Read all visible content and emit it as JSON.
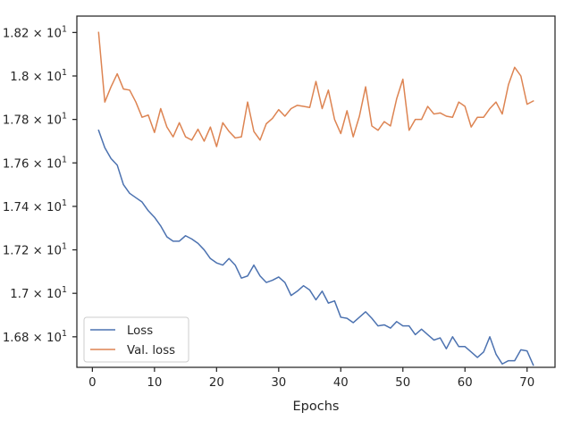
{
  "chart_data": {
    "type": "line",
    "xlabel": "Epochs",
    "ylabel": "",
    "xlim": [
      -2.5,
      74.5
    ],
    "ylim": [
      16.6595,
      18.2755
    ],
    "x_ticks": [
      0,
      10,
      20,
      30,
      40,
      50,
      60,
      70
    ],
    "y_ticks": [
      {
        "value": 16.8,
        "mantissa": "1.68"
      },
      {
        "value": 17.0,
        "mantissa": "1.7"
      },
      {
        "value": 17.2,
        "mantissa": "1.72"
      },
      {
        "value": 17.4,
        "mantissa": "1.74"
      },
      {
        "value": 17.6,
        "mantissa": "1.76"
      },
      {
        "value": 17.8,
        "mantissa": "1.78"
      },
      {
        "value": 18.0,
        "mantissa": "1.8"
      },
      {
        "value": 18.2,
        "mantissa": "1.82"
      }
    ],
    "y_tick_suffix": "× 10",
    "y_tick_exponent": "1",
    "grid": false,
    "legend_position": "lower-left",
    "x": [
      1,
      2,
      3,
      4,
      5,
      6,
      7,
      8,
      9,
      10,
      11,
      12,
      13,
      14,
      15,
      16,
      17,
      18,
      19,
      20,
      21,
      22,
      23,
      24,
      25,
      26,
      27,
      28,
      29,
      30,
      31,
      32,
      33,
      34,
      35,
      36,
      37,
      38,
      39,
      40,
      41,
      42,
      43,
      44,
      45,
      46,
      47,
      48,
      49,
      50,
      51,
      52,
      53,
      54,
      55,
      56,
      57,
      58,
      59,
      60,
      61,
      62,
      63,
      64,
      65,
      66,
      67,
      68,
      69,
      70,
      71
    ],
    "series": [
      {
        "name": "Loss",
        "color": "#4c72b0",
        "values": [
          17.75,
          17.67,
          17.62,
          17.59,
          17.5,
          17.46,
          17.44,
          17.42,
          17.38,
          17.35,
          17.31,
          17.26,
          17.24,
          17.24,
          17.265,
          17.25,
          17.23,
          17.2,
          17.16,
          17.14,
          17.13,
          17.16,
          17.13,
          17.07,
          17.08,
          17.13,
          17.08,
          17.05,
          17.06,
          17.075,
          17.05,
          16.99,
          17.01,
          17.035,
          17.015,
          16.97,
          17.01,
          16.955,
          16.965,
          16.89,
          16.885,
          16.865,
          16.89,
          16.915,
          16.885,
          16.85,
          16.855,
          16.84,
          16.87,
          16.85,
          16.85,
          16.81,
          16.835,
          16.81,
          16.785,
          16.795,
          16.745,
          16.8,
          16.755,
          16.755,
          16.73,
          16.705,
          16.73,
          16.8,
          16.72,
          16.675,
          16.69,
          16.69,
          16.74,
          16.735,
          16.67
        ]
      },
      {
        "name": "Val. loss",
        "color": "#dd8452",
        "values": [
          18.2,
          17.88,
          17.95,
          18.01,
          17.94,
          17.935,
          17.88,
          17.81,
          17.82,
          17.74,
          17.85,
          17.765,
          17.72,
          17.785,
          17.72,
          17.705,
          17.755,
          17.7,
          17.765,
          17.675,
          17.785,
          17.745,
          17.715,
          17.72,
          17.88,
          17.745,
          17.705,
          17.78,
          17.805,
          17.845,
          17.815,
          17.85,
          17.865,
          17.86,
          17.855,
          17.975,
          17.85,
          17.935,
          17.8,
          17.735,
          17.84,
          17.72,
          17.815,
          17.95,
          17.77,
          17.75,
          17.79,
          17.77,
          17.895,
          17.985,
          17.75,
          17.8,
          17.8,
          17.86,
          17.825,
          17.83,
          17.815,
          17.81,
          17.88,
          17.86,
          17.765,
          17.81,
          17.81,
          17.85,
          17.88,
          17.825,
          17.96,
          18.04,
          18.0,
          17.87,
          17.885
        ]
      }
    ]
  }
}
